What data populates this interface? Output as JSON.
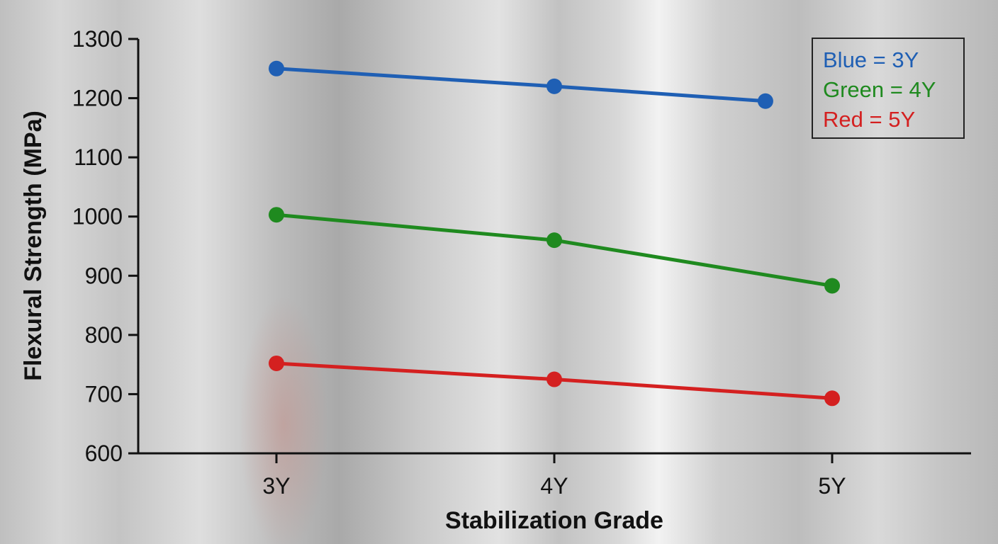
{
  "chart_data": {
    "type": "line",
    "xlabel": "Stabilization Grade",
    "ylabel": "Flexural Strength (MPa)",
    "categories": [
      "3Y",
      "4Y",
      "5Y"
    ],
    "ylim": [
      600,
      1300
    ],
    "yticks": [
      600,
      700,
      800,
      900,
      1000,
      1100,
      1200,
      1300
    ],
    "grid": false,
    "legend_position": "top-right",
    "legend": [
      {
        "label": "Blue = 3Y",
        "color": "#1f5fb4"
      },
      {
        "label": "Green = 4Y",
        "color": "#1f8a1f"
      },
      {
        "label": "Red = 5Y",
        "color": "#d42020"
      }
    ],
    "series": [
      {
        "color": "#1f5fb4",
        "x": [
          0,
          1,
          1.76
        ],
        "values": [
          1250,
          1220,
          1195
        ]
      },
      {
        "color": "#1f8a1f",
        "x": [
          0,
          1,
          2
        ],
        "values": [
          1003,
          960,
          883
        ]
      },
      {
        "color": "#d42020",
        "x": [
          0,
          1,
          2
        ],
        "values": [
          752,
          725,
          693
        ]
      }
    ]
  }
}
